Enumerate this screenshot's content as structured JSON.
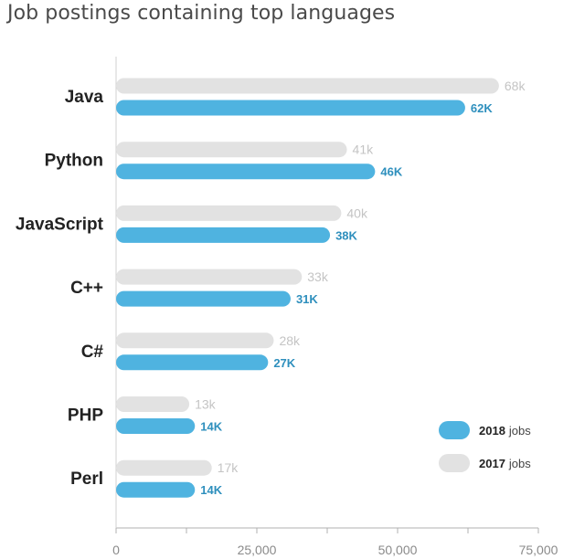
{
  "chart_data": {
    "type": "bar",
    "title": "Job postings containing top languages",
    "categories": [
      "Java",
      "Python",
      "JavaScript",
      "C++",
      "C#",
      "PHP",
      "Perl"
    ],
    "series": [
      {
        "name": "2017",
        "values": [
          68000,
          41000,
          40000,
          33000,
          28000,
          13000,
          17000
        ],
        "labels": [
          "68k",
          "41k",
          "40k",
          "33k",
          "28k",
          "13k",
          "17k"
        ]
      },
      {
        "name": "2018",
        "values": [
          62000,
          46000,
          38000,
          31000,
          27000,
          14000,
          14000
        ],
        "labels": [
          "62K",
          "46K",
          "38K",
          "31K",
          "27K",
          "14K",
          "14K"
        ]
      }
    ],
    "xlim": [
      0,
      75000
    ],
    "x_ticks": [
      0,
      25000,
      50000,
      75000
    ],
    "x_tick_labels": [
      "0",
      "25,000",
      "50,000",
      "75,000"
    ],
    "orientation": "horizontal",
    "legend_position": "bottom-right",
    "colors": {
      "2018": "#4fb3e0",
      "2017": "#e2e2e2",
      "label_2018": "#2e8fbd",
      "label_2017": "#c4c4c4"
    }
  },
  "legend": {
    "items": [
      {
        "year": "2018",
        "unit": "jobs"
      },
      {
        "year": "2017",
        "unit": "jobs"
      }
    ]
  }
}
